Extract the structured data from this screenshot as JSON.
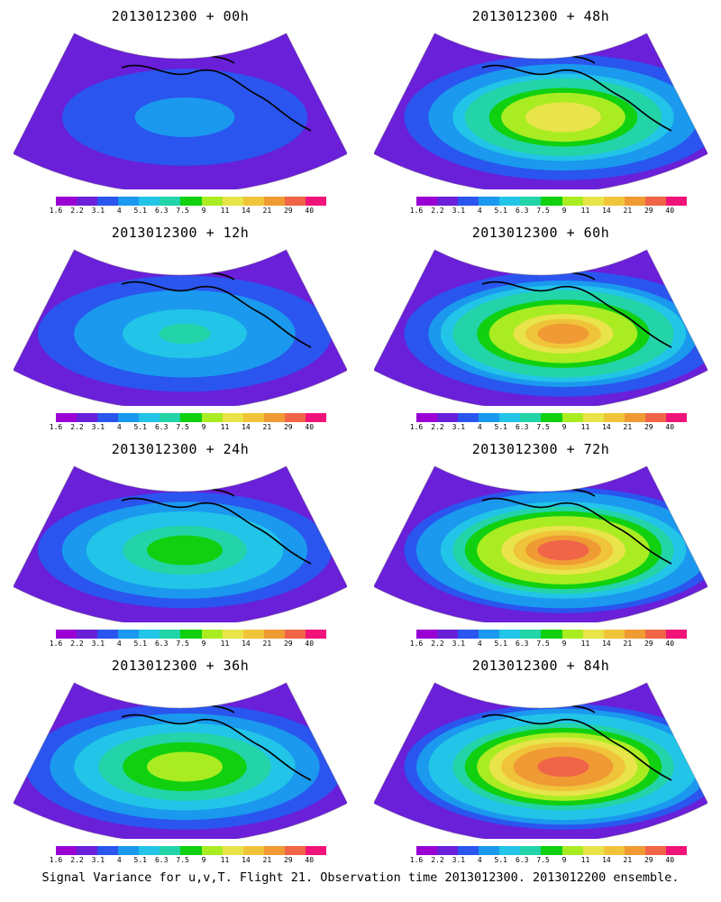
{
  "colorbar": {
    "labels": [
      "1.6",
      "2.2",
      "3.1",
      "4",
      "5.1",
      "6.3",
      "7.5",
      "9",
      "11",
      "14",
      "21",
      "29",
      "40"
    ],
    "colors": [
      "#9a00d4",
      "#6a1fd8",
      "#2a55ee",
      "#1a99ee",
      "#22c4e8",
      "#22d4a8",
      "#10d010",
      "#aaec22",
      "#e8e44a",
      "#f0c43a",
      "#f09a34",
      "#f06448",
      "#f0147a"
    ]
  },
  "panels": [
    {
      "title": "2013012300 + 00h",
      "intensity": 0.15
    },
    {
      "title": "2013012300 + 48h",
      "intensity": 0.62
    },
    {
      "title": "2013012300 + 12h",
      "intensity": 0.3
    },
    {
      "title": "2013012300 + 60h",
      "intensity": 0.72
    },
    {
      "title": "2013012300 + 24h",
      "intensity": 0.42
    },
    {
      "title": "2013012300 + 72h",
      "intensity": 0.8
    },
    {
      "title": "2013012300 + 36h",
      "intensity": 0.52
    },
    {
      "title": "2013012300 + 84h",
      "intensity": 0.86
    }
  ],
  "footer": "Signal Variance for u,v,T. Flight 21. Observation time 2013012300. 2013012200 ensemble."
}
